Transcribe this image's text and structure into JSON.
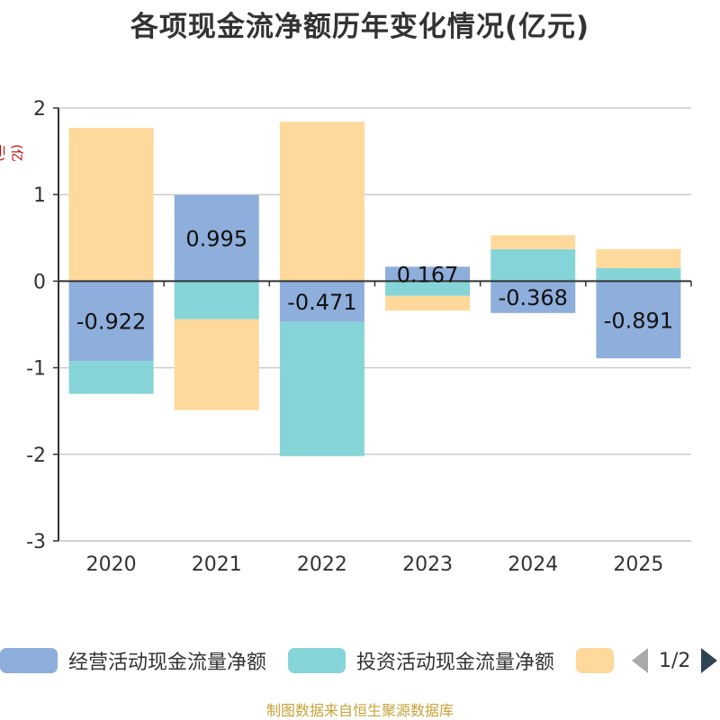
{
  "title": "各项现金流净额历年变化情况(亿元)",
  "unit_label": "(亿元)",
  "footer": "制图数据来自恒生聚源数据库",
  "legend": {
    "page_text": "1/2"
  },
  "colors": {
    "operating": "#8eaedb",
    "investing": "#85d5d8",
    "financing": "#fed99b",
    "axis": "#333333",
    "grid": "#cccccc"
  },
  "chart_data": {
    "type": "bar",
    "stacked": true,
    "title": "各项现金流净额历年变化情况(亿元)",
    "ylabel": "(亿元)",
    "ylim": [
      -3,
      2
    ],
    "yticks": [
      -3,
      -2,
      -1,
      0,
      1,
      2
    ],
    "categories": [
      "2020",
      "2021",
      "2022",
      "2023",
      "2024",
      "2025"
    ],
    "series": [
      {
        "name": "经营活动现金流量净额",
        "values": [
          -0.922,
          0.995,
          -0.471,
          0.167,
          -0.368,
          -0.891
        ],
        "labels": [
          "-0.922",
          "0.995",
          "-0.471",
          "0.167",
          "-0.368",
          "-0.891"
        ],
        "color": "#8eaedb"
      },
      {
        "name": "投资活动现金流量净额",
        "values": [
          -0.38,
          -0.44,
          -1.55,
          -0.17,
          0.37,
          0.15
        ],
        "color": "#85d5d8"
      },
      {
        "name": "",
        "values": [
          1.77,
          -1.05,
          1.84,
          -0.17,
          0.16,
          0.22
        ],
        "color": "#fed99b"
      }
    ]
  }
}
